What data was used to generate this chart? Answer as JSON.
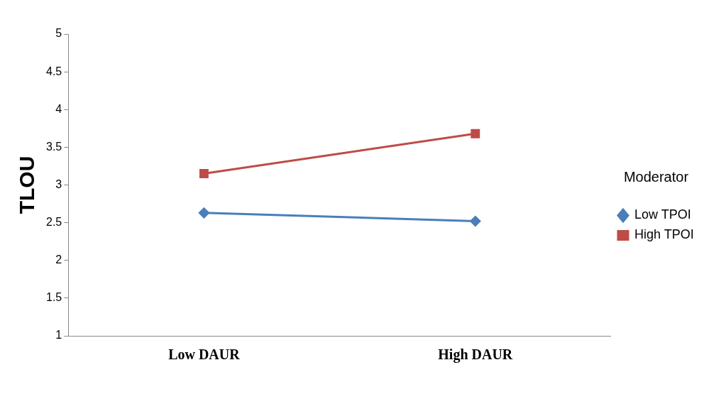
{
  "chart_data": {
    "type": "line",
    "ylabel": "TLOU",
    "legend_title": "Moderator",
    "categories": [
      "Low DAUR",
      "High DAUR"
    ],
    "series": [
      {
        "name": "Low TPOI",
        "color": "#4a7ebb",
        "values": [
          2.63,
          2.52
        ],
        "marker": "diamond"
      },
      {
        "name": "High TPOI",
        "color": "#be4b48",
        "values": [
          3.15,
          3.68
        ],
        "marker": "square"
      }
    ],
    "ylim": [
      1,
      5
    ],
    "yticks": [
      1,
      1.5,
      2,
      2.5,
      3,
      3.5,
      4,
      4.5,
      5
    ],
    "grid": false,
    "legend": "right"
  }
}
